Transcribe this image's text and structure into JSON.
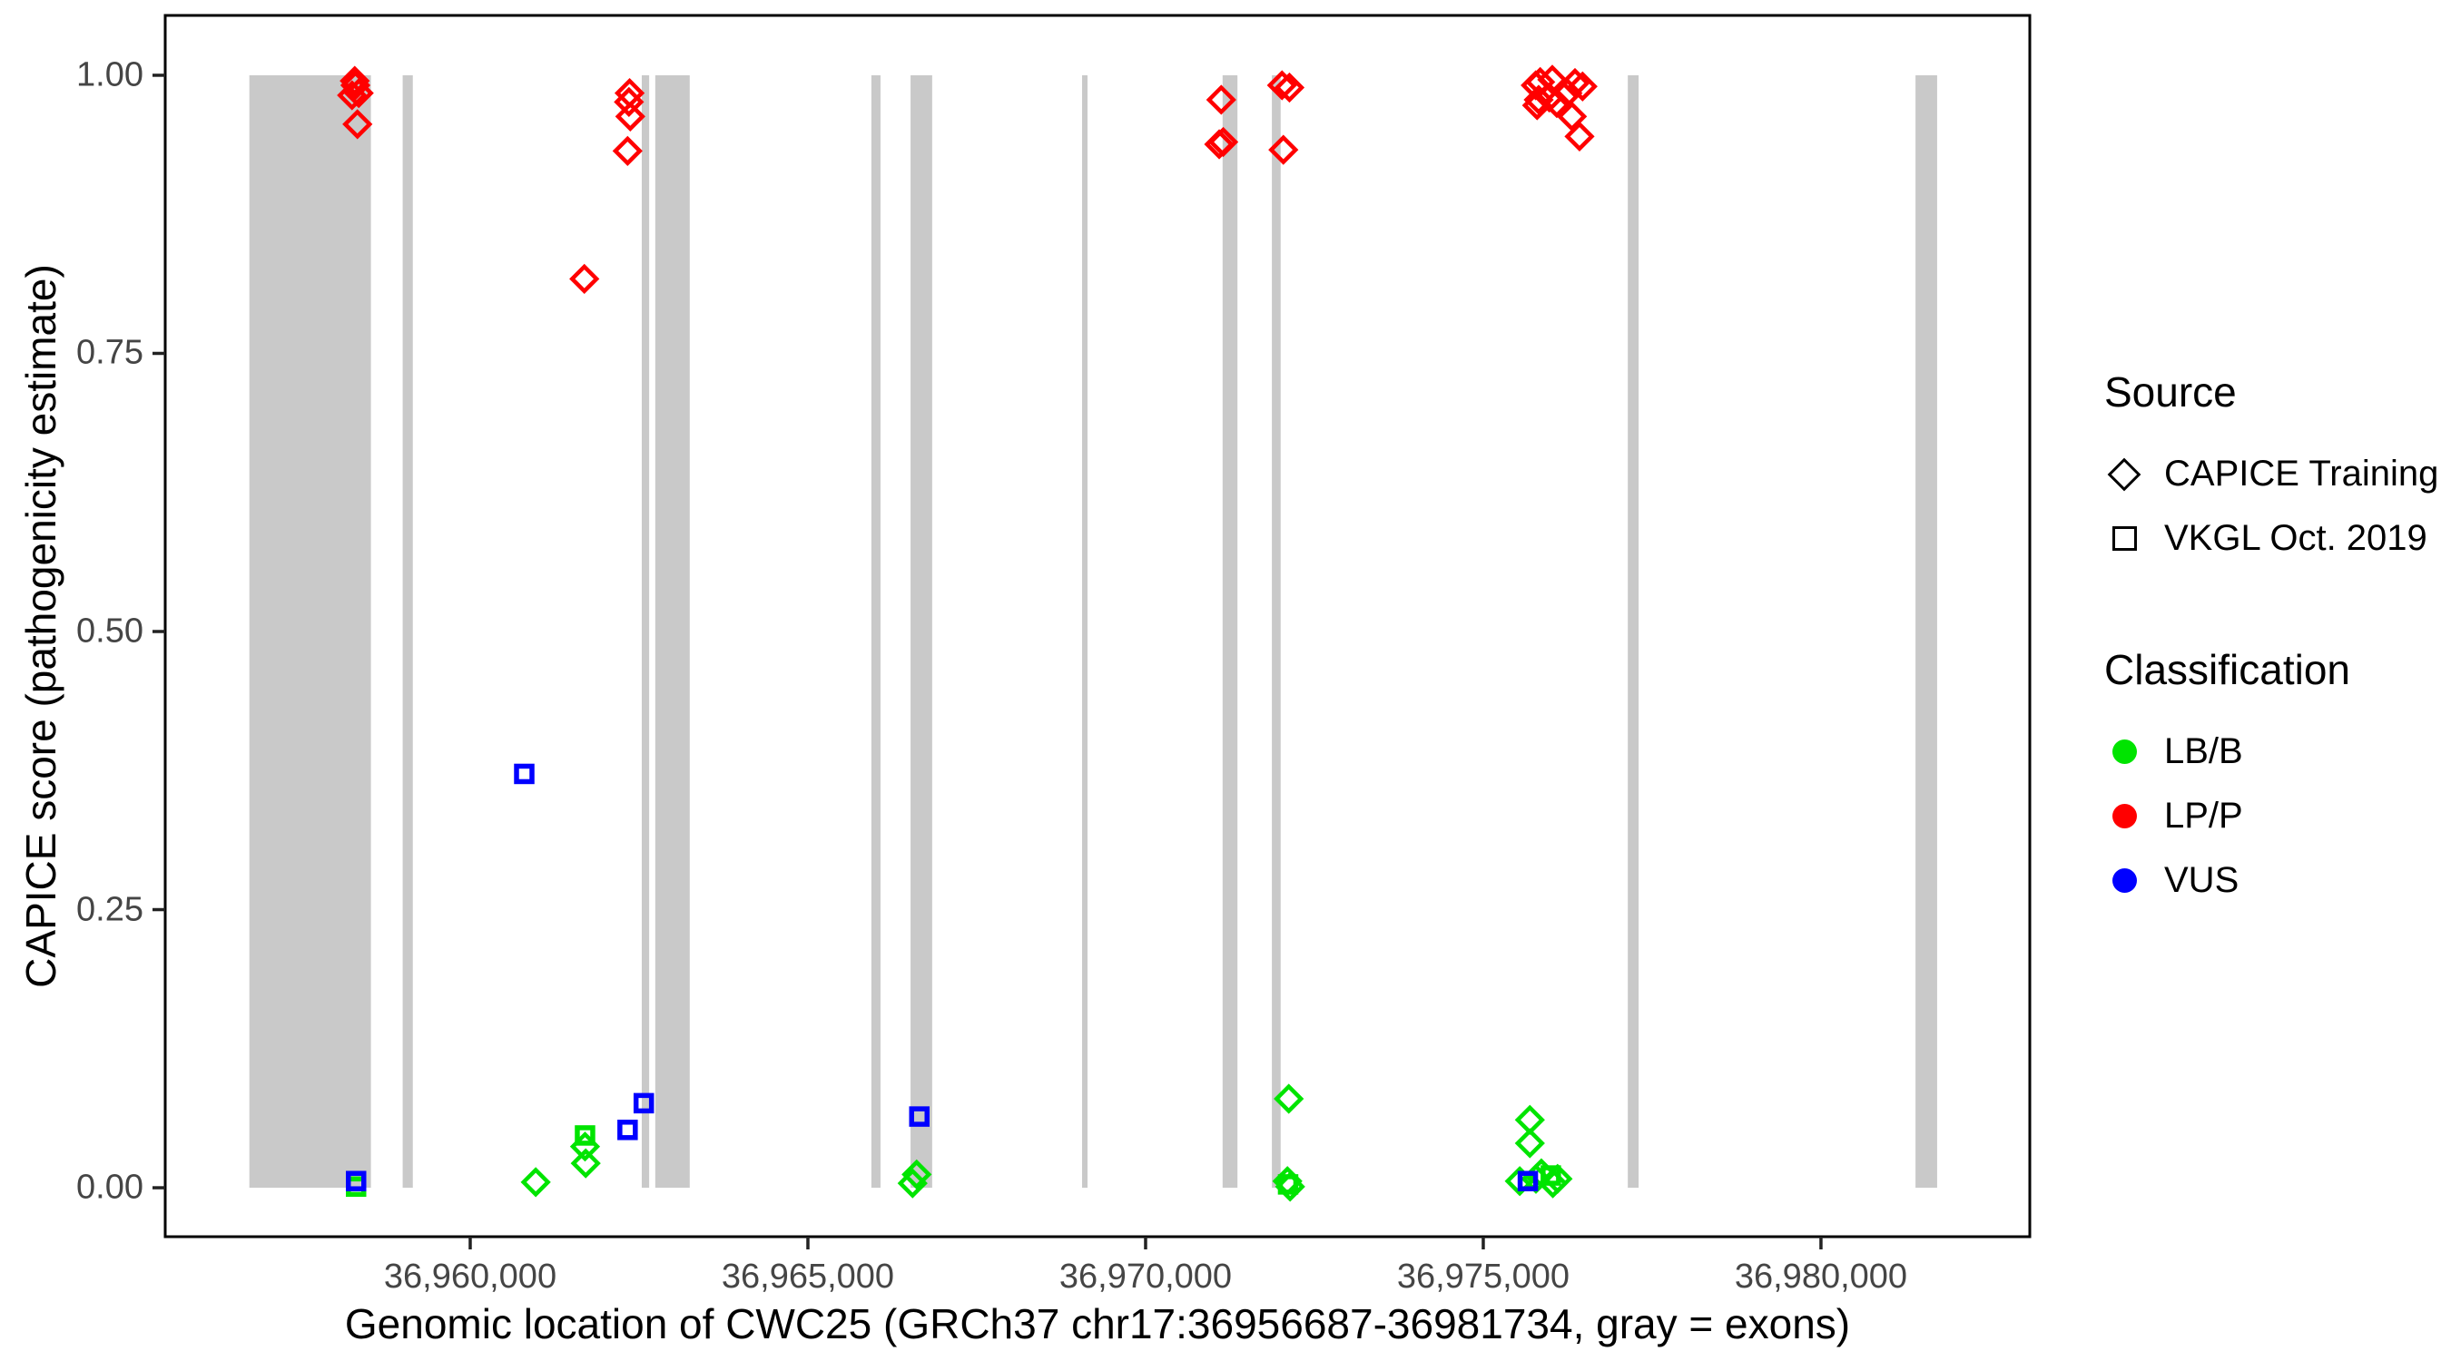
{
  "chart_data": {
    "type": "scatter",
    "title": "",
    "xlabel": "Genomic location of CWC25 (GRCh37 chr17:36956687-36981734, gray = exons)",
    "ylabel": "CAPICE score (pathogenicity estimate)",
    "x_domain": [
      36955484,
      36983092
    ],
    "y_domain": [
      -0.044,
      1.0538
    ],
    "x_ticks": [
      {
        "value": 36960000,
        "label": "36,960,000"
      },
      {
        "value": 36965000,
        "label": "36,965,000"
      },
      {
        "value": 36970000,
        "label": "36,970,000"
      },
      {
        "value": 36975000,
        "label": "36,975,000"
      },
      {
        "value": 36980000,
        "label": "36,980,000"
      }
    ],
    "y_ticks": [
      {
        "value": 0.0,
        "label": "0.00"
      },
      {
        "value": 0.25,
        "label": "0.25"
      },
      {
        "value": 0.5,
        "label": "0.50"
      },
      {
        "value": 0.75,
        "label": "0.75"
      },
      {
        "value": 1.0,
        "label": "1.00"
      }
    ],
    "exons_note": "gray rectangles span y 0 to 1",
    "exons": [
      [
        36956730,
        36958530
      ],
      [
        36959000,
        36959150
      ],
      [
        36962540,
        36962650
      ],
      [
        36962740,
        36963250
      ],
      [
        36965940,
        36966075
      ],
      [
        36966520,
        36966840
      ],
      [
        36969060,
        36969140
      ],
      [
        36971140,
        36971360
      ],
      [
        36971870,
        36972000
      ],
      [
        36977140,
        36977300
      ],
      [
        36981400,
        36981720
      ]
    ],
    "series": [
      {
        "source": "CAPICE Training",
        "classification": "LP/P",
        "marker": "diamond",
        "color": "#FF0000",
        "points": [
          [
            36958290,
            0.995
          ],
          [
            36958300,
            0.991
          ],
          [
            36958350,
            0.984
          ],
          [
            36958250,
            0.982
          ],
          [
            36958330,
            0.956
          ],
          [
            36962360,
            0.984
          ],
          [
            36962350,
            0.976
          ],
          [
            36962370,
            0.963
          ],
          [
            36962330,
            0.932
          ],
          [
            36961690,
            0.817
          ],
          [
            36971120,
            0.978
          ],
          [
            36971090,
            0.938
          ],
          [
            36971150,
            0.94
          ],
          [
            36972020,
            0.991
          ],
          [
            36972130,
            0.989
          ],
          [
            36972040,
            0.933
          ],
          [
            36975843,
            0.994
          ],
          [
            36975776,
            0.991
          ],
          [
            36976022,
            0.996
          ],
          [
            36976358,
            0.993
          ],
          [
            36976470,
            0.99
          ],
          [
            36976247,
            0.984
          ],
          [
            36975977,
            0.98
          ],
          [
            36975820,
            0.978
          ],
          [
            36976089,
            0.975
          ],
          [
            36975797,
            0.973
          ],
          [
            36976313,
            0.963
          ],
          [
            36976425,
            0.945
          ]
        ]
      },
      {
        "source": "CAPICE Training",
        "classification": "LB/B",
        "marker": "diamond",
        "color": "#00E400",
        "points": [
          [
            36960970,
            0.005
          ],
          [
            36961700,
            0.037
          ],
          [
            36961710,
            0.022
          ],
          [
            36966550,
            0.004
          ],
          [
            36966610,
            0.012
          ],
          [
            36972120,
            0.08
          ],
          [
            36972100,
            0.006
          ],
          [
            36972140,
            0.001
          ],
          [
            36975690,
            0.061
          ],
          [
            36975690,
            0.04
          ],
          [
            36975540,
            0.006
          ],
          [
            36975780,
            0.008
          ],
          [
            36975860,
            0.013
          ],
          [
            36976030,
            0.004
          ],
          [
            36976100,
            0.008
          ]
        ]
      },
      {
        "source": "VKGL Oct. 2019",
        "classification": "LB/B",
        "marker": "square",
        "color": "#00E400",
        "points": [
          [
            36958310,
            0.001
          ],
          [
            36961700,
            0.047
          ],
          [
            36972110,
            0.003
          ],
          [
            36976000,
            0.011
          ]
        ]
      },
      {
        "source": "VKGL Oct. 2019",
        "classification": "VUS",
        "marker": "square",
        "color": "#0000FF",
        "points": [
          [
            36958310,
            0.006
          ],
          [
            36960800,
            0.372
          ],
          [
            36962330,
            0.052
          ],
          [
            36962570,
            0.076
          ],
          [
            36966650,
            0.064
          ],
          [
            36975660,
            0.006
          ]
        ]
      }
    ],
    "colors": {
      "exon": "#C9C9C9",
      "panel_border": "#000000",
      "tick_text": "#454545",
      "lp_p": "#FF0000",
      "lb_b": "#00E400",
      "vus": "#0000FF"
    },
    "legend_position": "right"
  },
  "legend": {
    "source": {
      "title": "Source",
      "items": [
        {
          "label": "CAPICE Training",
          "shape": "diamond"
        },
        {
          "label": "VKGL Oct. 2019",
          "shape": "square"
        }
      ]
    },
    "classification": {
      "title": "Classification",
      "items": [
        {
          "label": "LB/B",
          "color": "#00E400"
        },
        {
          "label": "LP/P",
          "color": "#FF0000"
        },
        {
          "label": "VUS",
          "color": "#0000FF"
        }
      ]
    }
  }
}
